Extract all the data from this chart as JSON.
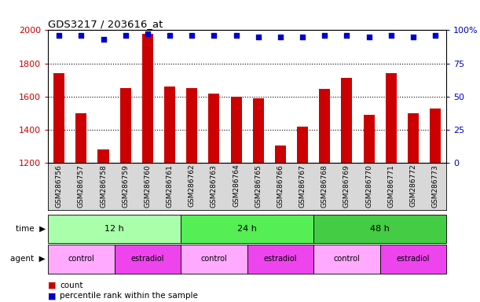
{
  "title": "GDS3217 / 203616_at",
  "samples": [
    "GSM286756",
    "GSM286757",
    "GSM286758",
    "GSM286759",
    "GSM286760",
    "GSM286761",
    "GSM286762",
    "GSM286763",
    "GSM286764",
    "GSM286765",
    "GSM286766",
    "GSM286767",
    "GSM286768",
    "GSM286769",
    "GSM286770",
    "GSM286771",
    "GSM286772",
    "GSM286773"
  ],
  "counts": [
    1740,
    1500,
    1280,
    1650,
    1980,
    1660,
    1650,
    1620,
    1600,
    1590,
    1305,
    1420,
    1645,
    1715,
    1490,
    1740,
    1500,
    1530
  ],
  "percentiles": [
    96,
    96,
    93,
    96,
    97,
    96,
    96,
    96,
    96,
    95,
    95,
    95,
    96,
    96,
    95,
    96,
    95,
    96
  ],
  "bar_color": "#cc0000",
  "dot_color": "#0000cc",
  "ylim_left": [
    1200,
    2000
  ],
  "ylim_right": [
    0,
    100
  ],
  "yticks_left": [
    1200,
    1400,
    1600,
    1800,
    2000
  ],
  "yticks_right": [
    0,
    25,
    50,
    75,
    100
  ],
  "yticklabels_right": [
    "0",
    "25",
    "50",
    "75",
    "100%"
  ],
  "gridlines": [
    1400,
    1600,
    1800
  ],
  "time_groups": [
    {
      "label": "12 h",
      "start": 0,
      "end": 6,
      "color": "#aaffaa"
    },
    {
      "label": "24 h",
      "start": 6,
      "end": 12,
      "color": "#55ee55"
    },
    {
      "label": "48 h",
      "start": 12,
      "end": 18,
      "color": "#44cc44"
    }
  ],
  "agent_groups": [
    {
      "label": "control",
      "start": 0,
      "end": 3,
      "color": "#ffaaff"
    },
    {
      "label": "estradiol",
      "start": 3,
      "end": 6,
      "color": "#ee44ee"
    },
    {
      "label": "control",
      "start": 6,
      "end": 9,
      "color": "#ffaaff"
    },
    {
      "label": "estradiol",
      "start": 9,
      "end": 12,
      "color": "#ee44ee"
    },
    {
      "label": "control",
      "start": 12,
      "end": 15,
      "color": "#ffaaff"
    },
    {
      "label": "estradiol",
      "start": 15,
      "end": 18,
      "color": "#ee44ee"
    }
  ],
  "legend_count_label": "count",
  "legend_pct_label": "percentile rank within the sample",
  "time_label": "time",
  "agent_label": "agent",
  "left_axis_color": "#cc0000",
  "right_axis_color": "#0000cc",
  "xticklabel_bg": "#d8d8d8"
}
